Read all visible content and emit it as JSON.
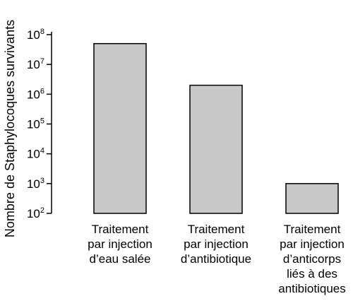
{
  "chart_data": {
    "type": "bar",
    "scale": "log10",
    "ylabel": "Nombre de Staphylocoques survivants",
    "yticks": [
      {
        "base": "10",
        "exp": "2",
        "value": 100
      },
      {
        "base": "10",
        "exp": "3",
        "value": 1000
      },
      {
        "base": "10",
        "exp": "4",
        "value": 10000
      },
      {
        "base": "10",
        "exp": "5",
        "value": 100000
      },
      {
        "base": "10",
        "exp": "6",
        "value": 1000000
      },
      {
        "base": "10",
        "exp": "7",
        "value": 10000000
      },
      {
        "base": "10",
        "exp": "8",
        "value": 100000000
      }
    ],
    "ylim": [
      100,
      100000000
    ],
    "categories": [
      "Traitement\npar injection\nd’eau salée",
      "Traitement\npar injection\nd’antibiotique",
      "Traitement\npar injection\nd’anticorps\nliés à des\nantibiotiques"
    ],
    "values": [
      50000000,
      2000000,
      1000
    ],
    "bar_color": "#c8c8c8",
    "grid": false,
    "legend": "none"
  }
}
